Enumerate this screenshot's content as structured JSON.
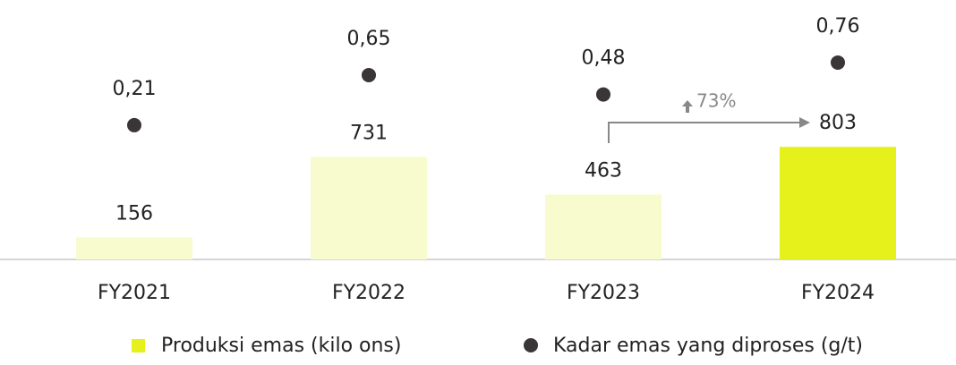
{
  "chart_data": {
    "type": "bar",
    "categories": [
      "FY2021",
      "FY2022",
      "FY2023",
      "FY2024"
    ],
    "series": [
      {
        "name": "Produksi emas (kilo ons)",
        "color": "#e6f01a",
        "colors": [
          "#f8fbcd",
          "#f8fbcd",
          "#f8fbcd",
          "#e6f01a"
        ],
        "values": [
          156,
          731,
          463,
          803
        ]
      },
      {
        "name": "Kadar emas yang diproses (g/t)",
        "type": "scatter",
        "axis": "y2",
        "color": "#3a3536",
        "values": [
          0.21,
          0.65,
          0.48,
          0.76
        ],
        "value_labels": [
          "0,21",
          "0,65",
          "0,48",
          "0,76"
        ]
      }
    ],
    "ylim": [
      0,
      1850
    ],
    "y2lim": [
      -0.97,
      1.31
    ],
    "annotation": "73%"
  }
}
